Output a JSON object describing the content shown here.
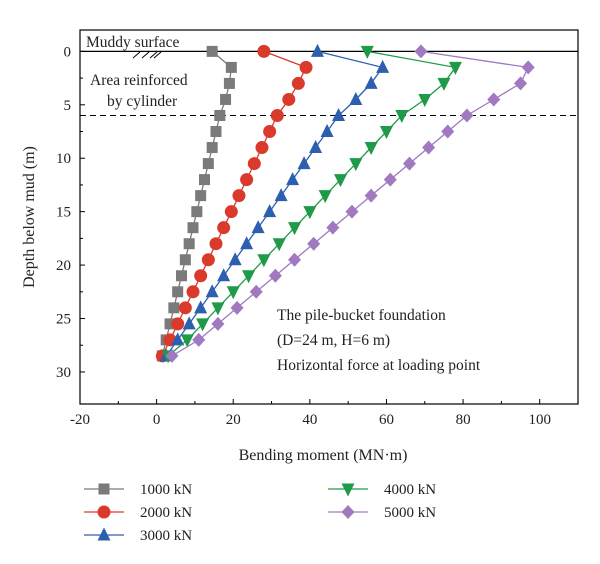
{
  "chart_data": {
    "type": "line",
    "xlabel": "Bending moment (MN·m)",
    "ylabel": "Depth below mud (m)",
    "xlim": [
      -20,
      110
    ],
    "ylim": [
      33,
      -2
    ],
    "y_inverted": true,
    "xticks": [
      -20,
      0,
      20,
      40,
      60,
      80,
      100
    ],
    "yticks": [
      0,
      5,
      10,
      15,
      20,
      25,
      30
    ],
    "grid": false,
    "legend_position": "bottom",
    "reference_lines": {
      "muddy_surface_depth": 0,
      "reinforced_bottom_depth": 6
    },
    "annotations": {
      "muddy_surface": "Muddy surface",
      "area_line1": "Area reinforced",
      "area_line2": "by cylinder",
      "info_line1": "The pile-bucket foundation",
      "info_line2": "(D=24 m, H=6 m)",
      "info_line3": "Horizontal force at loading point"
    },
    "series": [
      {
        "name": "1000 kN",
        "color": "#7a7a7a",
        "marker": "square",
        "points": [
          [
            14.5,
            0
          ],
          [
            19.5,
            1.5
          ],
          [
            19.0,
            3.0
          ],
          [
            18.0,
            4.5
          ],
          [
            16.5,
            6.0
          ],
          [
            15.5,
            7.5
          ],
          [
            14.5,
            9.0
          ],
          [
            13.5,
            10.5
          ],
          [
            12.5,
            12.0
          ],
          [
            11.5,
            13.5
          ],
          [
            10.5,
            15.0
          ],
          [
            9.5,
            16.5
          ],
          [
            8.5,
            18.0
          ],
          [
            7.5,
            19.5
          ],
          [
            6.5,
            21.0
          ],
          [
            5.5,
            22.5
          ],
          [
            4.5,
            24.0
          ],
          [
            3.5,
            25.5
          ],
          [
            2.5,
            27.0
          ],
          [
            1.5,
            28.5
          ]
        ]
      },
      {
        "name": "2000 kN",
        "color": "#d93a2b",
        "marker": "circle",
        "points": [
          [
            28,
            0
          ],
          [
            39,
            1.5
          ],
          [
            37,
            3.0
          ],
          [
            34.5,
            4.5
          ],
          [
            31.5,
            6.0
          ],
          [
            29.5,
            7.5
          ],
          [
            27.5,
            9.0
          ],
          [
            25.5,
            10.5
          ],
          [
            23.5,
            12.0
          ],
          [
            21.5,
            13.5
          ],
          [
            19.5,
            15.0
          ],
          [
            17.5,
            16.5
          ],
          [
            15.5,
            18.0
          ],
          [
            13.5,
            19.5
          ],
          [
            11.5,
            21.0
          ],
          [
            9.5,
            22.5
          ],
          [
            7.5,
            24.0
          ],
          [
            5.5,
            25.5
          ],
          [
            3.5,
            27.0
          ],
          [
            1.5,
            28.5
          ]
        ]
      },
      {
        "name": "3000 kN",
        "color": "#2d5fb0",
        "marker": "triangle-up",
        "points": [
          [
            42,
            0
          ],
          [
            59,
            1.5
          ],
          [
            56,
            3.0
          ],
          [
            52,
            4.5
          ],
          [
            47.5,
            6.0
          ],
          [
            44.5,
            7.5
          ],
          [
            41.5,
            9.0
          ],
          [
            38.5,
            10.5
          ],
          [
            35.5,
            12.0
          ],
          [
            32.5,
            13.5
          ],
          [
            29.5,
            15.0
          ],
          [
            26.5,
            16.5
          ],
          [
            23.5,
            18.0
          ],
          [
            20.5,
            19.5
          ],
          [
            17.5,
            21.0
          ],
          [
            14.5,
            22.5
          ],
          [
            11.5,
            24.0
          ],
          [
            8.5,
            25.5
          ],
          [
            5.5,
            27.0
          ],
          [
            2.5,
            28.5
          ]
        ]
      },
      {
        "name": "4000 kN",
        "color": "#1f9a48",
        "marker": "triangle-down",
        "points": [
          [
            55,
            0
          ],
          [
            78,
            1.5
          ],
          [
            75,
            3.0
          ],
          [
            70,
            4.5
          ],
          [
            64,
            6.0
          ],
          [
            60,
            7.5
          ],
          [
            56,
            9.0
          ],
          [
            52,
            10.5
          ],
          [
            48,
            12.0
          ],
          [
            44,
            13.5
          ],
          [
            40,
            15.0
          ],
          [
            36,
            16.5
          ],
          [
            32,
            18.0
          ],
          [
            28,
            19.5
          ],
          [
            24,
            21.0
          ],
          [
            20,
            22.5
          ],
          [
            16,
            24.0
          ],
          [
            12,
            25.5
          ],
          [
            8,
            27.0
          ],
          [
            3,
            28.5
          ]
        ]
      },
      {
        "name": "5000 kN",
        "color": "#a079c0",
        "marker": "diamond",
        "points": [
          [
            69,
            0
          ],
          [
            97,
            1.5
          ],
          [
            95,
            3.0
          ],
          [
            88,
            4.5
          ],
          [
            81,
            6.0
          ],
          [
            76,
            7.5
          ],
          [
            71,
            9.0
          ],
          [
            66,
            10.5
          ],
          [
            61,
            12.0
          ],
          [
            56,
            13.5
          ],
          [
            51,
            15.0
          ],
          [
            46,
            16.5
          ],
          [
            41,
            18.0
          ],
          [
            36,
            19.5
          ],
          [
            31,
            21.0
          ],
          [
            26,
            22.5
          ],
          [
            21,
            24.0
          ],
          [
            16,
            25.5
          ],
          [
            11,
            27.0
          ],
          [
            4,
            28.5
          ]
        ]
      }
    ]
  }
}
